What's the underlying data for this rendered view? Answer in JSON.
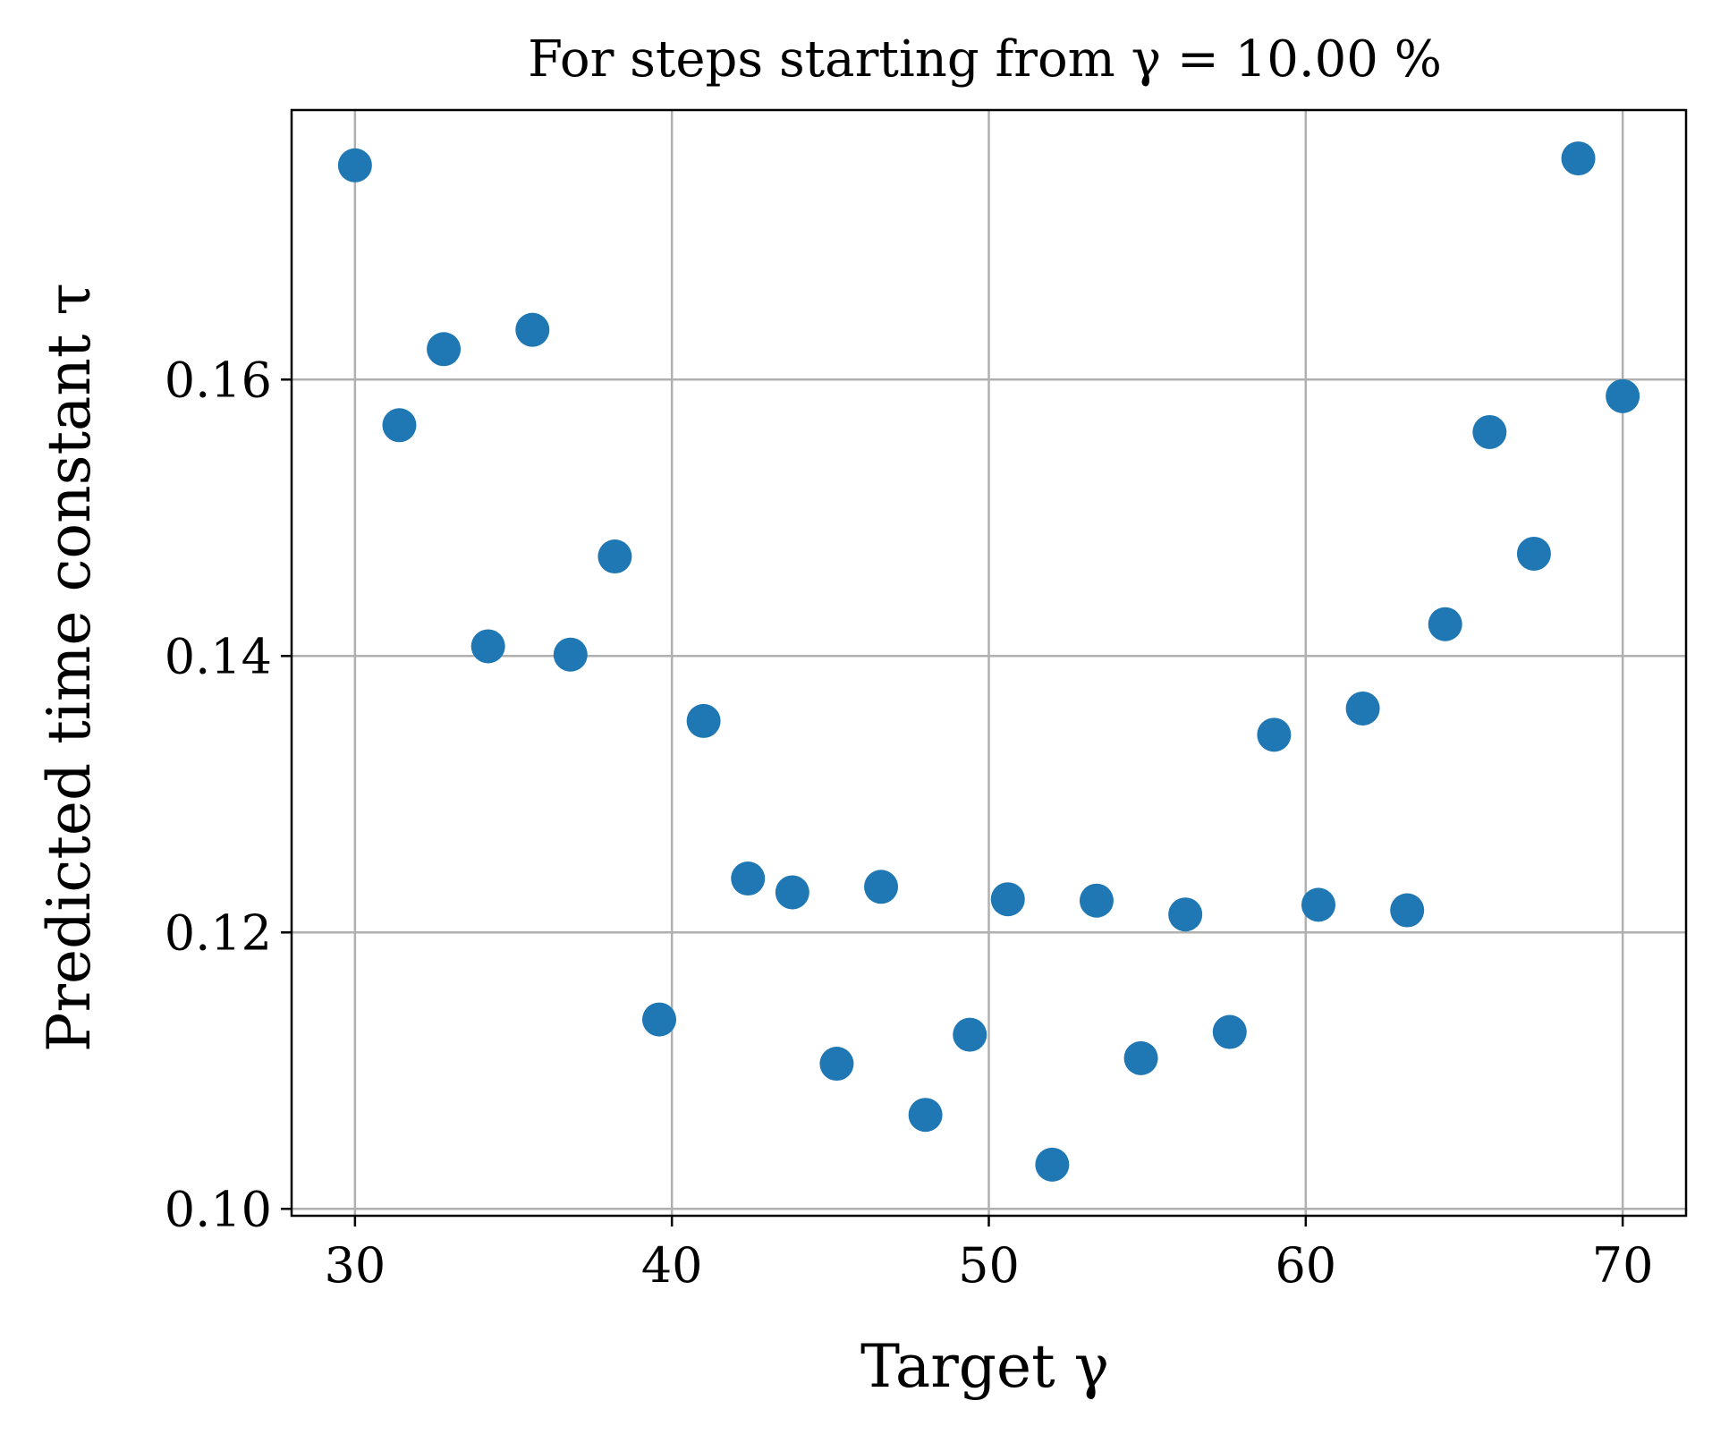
{
  "chart_data": {
    "type": "scatter",
    "title": "For steps starting from γ = 10.00 %",
    "xlabel": "Target γ",
    "ylabel": "Predicted time constant τ",
    "xlim": [
      28,
      72
    ],
    "ylim": [
      0.0995,
      0.1795
    ],
    "xticks": [
      30,
      40,
      50,
      60,
      70
    ],
    "yticks": [
      0.1,
      0.12,
      0.14,
      0.16
    ],
    "xtick_labels": [
      "30",
      "40",
      "50",
      "60",
      "70"
    ],
    "ytick_labels": [
      "0.10",
      "0.12",
      "0.14",
      "0.16"
    ],
    "grid": true,
    "series": [
      {
        "color": "#1f77b4",
        "points": [
          {
            "x": 30.0,
            "y": 0.1755
          },
          {
            "x": 31.4,
            "y": 0.1567
          },
          {
            "x": 32.8,
            "y": 0.1622
          },
          {
            "x": 34.2,
            "y": 0.1407
          },
          {
            "x": 35.6,
            "y": 0.1636
          },
          {
            "x": 36.8,
            "y": 0.1401
          },
          {
            "x": 38.2,
            "y": 0.1472
          },
          {
            "x": 39.6,
            "y": 0.1137
          },
          {
            "x": 41.0,
            "y": 0.1353
          },
          {
            "x": 42.4,
            "y": 0.1239
          },
          {
            "x": 43.8,
            "y": 0.1229
          },
          {
            "x": 45.2,
            "y": 0.1105
          },
          {
            "x": 46.6,
            "y": 0.1233
          },
          {
            "x": 48.0,
            "y": 0.1068
          },
          {
            "x": 49.4,
            "y": 0.1126
          },
          {
            "x": 50.6,
            "y": 0.1224
          },
          {
            "x": 52.0,
            "y": 0.1032
          },
          {
            "x": 53.4,
            "y": 0.1223
          },
          {
            "x": 54.8,
            "y": 0.1109
          },
          {
            "x": 56.2,
            "y": 0.1213
          },
          {
            "x": 57.6,
            "y": 0.1128
          },
          {
            "x": 59.0,
            "y": 0.1343
          },
          {
            "x": 60.4,
            "y": 0.122
          },
          {
            "x": 61.8,
            "y": 0.1362
          },
          {
            "x": 63.2,
            "y": 0.1216
          },
          {
            "x": 64.4,
            "y": 0.1423
          },
          {
            "x": 65.8,
            "y": 0.1562
          },
          {
            "x": 67.2,
            "y": 0.1474
          },
          {
            "x": 68.6,
            "y": 0.176
          },
          {
            "x": 70.0,
            "y": 0.1588
          }
        ]
      }
    ]
  }
}
